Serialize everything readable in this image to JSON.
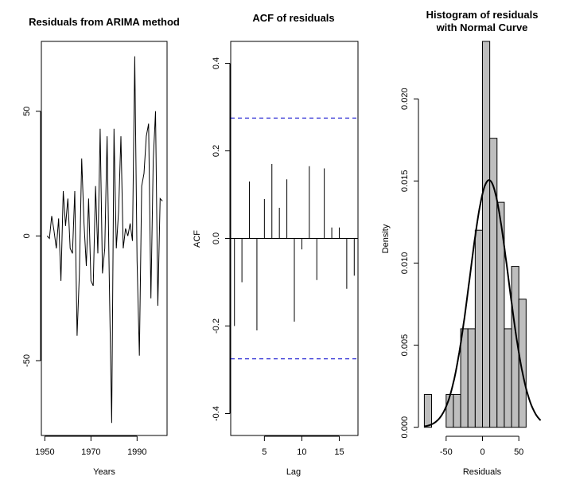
{
  "chart_data": [
    {
      "type": "line",
      "title": "Residuals from ARIMA method",
      "xlabel": "Years",
      "ylabel": "",
      "xlim": [
        1948.5,
        2003
      ],
      "ylim": [
        -80,
        78
      ],
      "xticks": [
        1950,
        1970,
        1990
      ],
      "yticks": [
        -50,
        0,
        50
      ],
      "x": [
        1951,
        1952,
        1953,
        1954,
        1955,
        1956,
        1957,
        1958,
        1959,
        1960,
        1961,
        1962,
        1963,
        1964,
        1965,
        1966,
        1967,
        1968,
        1969,
        1970,
        1971,
        1972,
        1973,
        1974,
        1975,
        1976,
        1977,
        1978,
        1979,
        1980,
        1981,
        1982,
        1983,
        1984,
        1985,
        1986,
        1987,
        1988,
        1989,
        1990,
        1991,
        1992,
        1993,
        1994,
        1995,
        1996,
        1997,
        1998,
        1999,
        2000,
        2001
      ],
      "series": [
        {
          "values": [
            0,
            -1,
            8,
            2,
            -5,
            7,
            -18,
            18,
            4,
            15,
            -5,
            -7,
            18,
            -40,
            -15,
            31,
            5,
            -12,
            15,
            -18,
            -20,
            20,
            -7,
            43,
            -15,
            -5,
            40,
            -20,
            -75,
            43,
            -5,
            10,
            40,
            -5,
            3,
            0,
            5,
            -2,
            72,
            -10,
            -48,
            20,
            25,
            40,
            45,
            -25,
            30,
            50,
            -28,
            15,
            14
          ]
        }
      ]
    },
    {
      "type": "bar",
      "title": "ACF of residuals",
      "xlabel": "Lag",
      "ylabel": "ACF",
      "xlim": [
        0.5,
        17.5
      ],
      "ylim": [
        -0.45,
        0.45
      ],
      "xticks": [
        5,
        10,
        15
      ],
      "yticks": [
        -0.4,
        -0.2,
        0.0,
        0.2,
        0.4
      ],
      "x": [
        1,
        2,
        3,
        4,
        5,
        6,
        7,
        8,
        9,
        10,
        11,
        12,
        13,
        14,
        15,
        16,
        17
      ],
      "values": [
        -0.2,
        -0.1,
        0.13,
        -0.21,
        0.09,
        0.17,
        0.07,
        0.135,
        -0.19,
        -0.025,
        0.165,
        -0.095,
        0.16,
        0.025,
        0.025,
        -0.115,
        -0.085
      ],
      "ci": [
        0.275,
        -0.275
      ]
    },
    {
      "type": "bar",
      "title": "Histogram of residuals with Normal Curve",
      "title_lines": [
        "Histogram of residuals",
        "with Normal Curve"
      ],
      "xlabel": "Residuals",
      "ylabel": "Density",
      "xlim": [
        -87,
        87
      ],
      "ylim": [
        -0.0005,
        0.0235
      ],
      "xticks": [
        -50,
        0,
        50
      ],
      "yticks": [
        0.0,
        0.005,
        0.01,
        0.015,
        0.02
      ],
      "bin_edges": [
        -80,
        -70,
        -60,
        -50,
        -40,
        -30,
        -20,
        -10,
        0,
        10,
        20,
        30,
        40,
        50,
        60,
        70,
        80
      ],
      "densities": [
        0.002,
        0,
        0,
        0.002,
        0.002,
        0.006,
        0.006,
        0.012,
        0.0235,
        0.0176,
        0.0137,
        0.006,
        0.0098,
        0.0078,
        0,
        0,
        0.002
      ],
      "normal_curve": {
        "mean": 9,
        "sd": 26.5
      }
    }
  ]
}
